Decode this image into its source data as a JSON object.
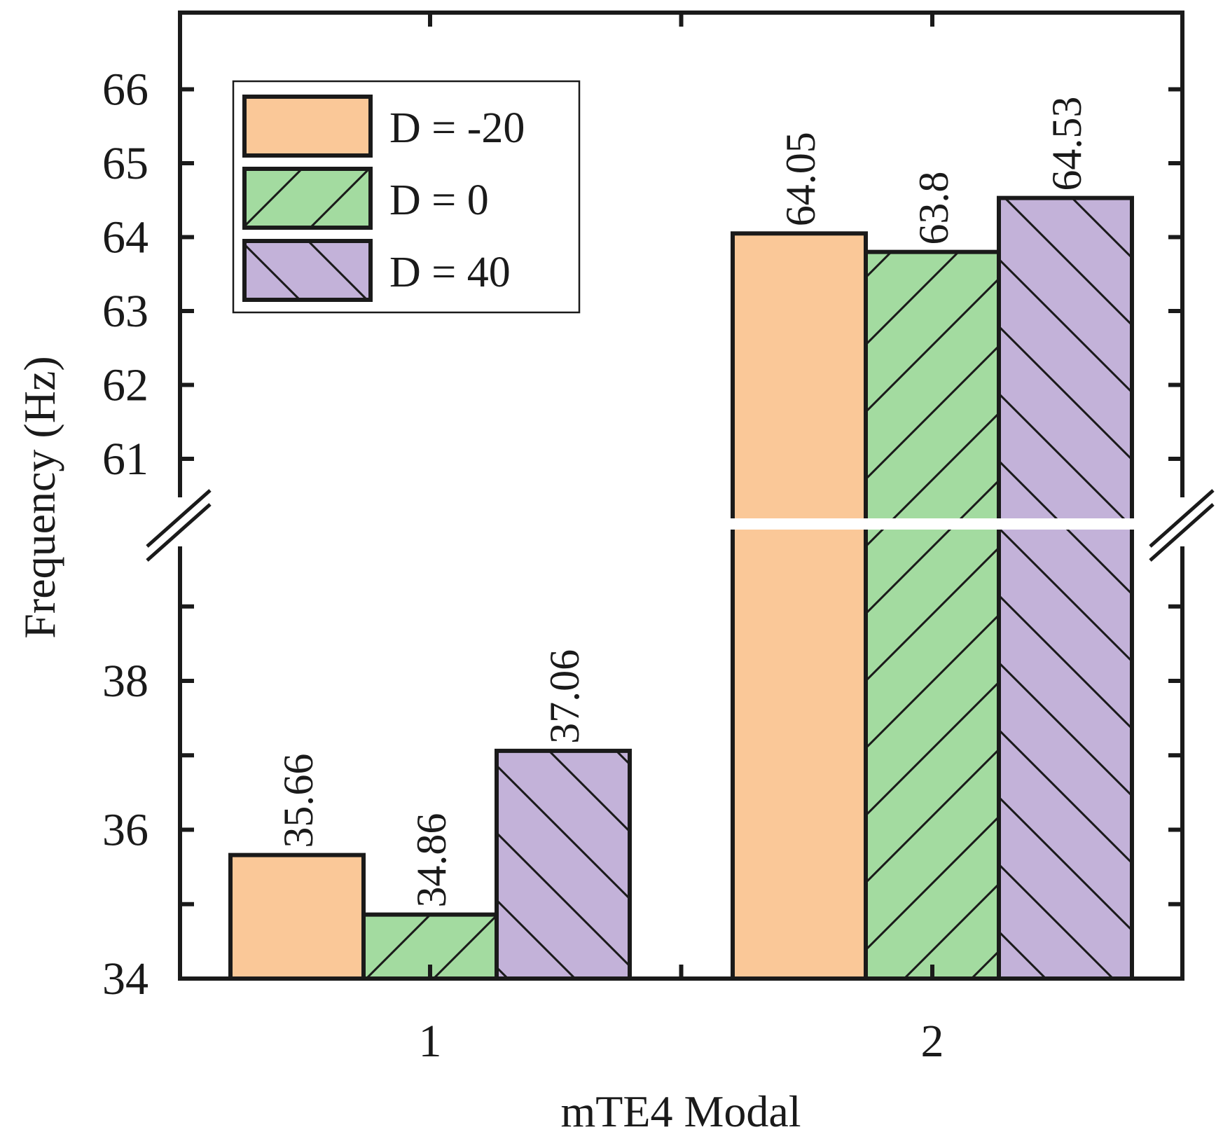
{
  "chart_data": {
    "type": "bar",
    "broken_axis": true,
    "title": "",
    "xlabel": "mTE4 Modal",
    "ylabel": "Frequency (Hz)",
    "categories": [
      "1",
      "2"
    ],
    "series": [
      {
        "name": "D = -20",
        "values": [
          35.66,
          64.05
        ],
        "value_labels": [
          "35.66",
          "64.05"
        ]
      },
      {
        "name": "D = 0",
        "values": [
          34.86,
          63.8
        ],
        "value_labels": [
          "34.86",
          "63.8"
        ]
      },
      {
        "name": "D = 40",
        "values": [
          37.06,
          64.53
        ],
        "value_labels": [
          "37.06",
          "64.53"
        ]
      }
    ],
    "y_segments": [
      {
        "range": [
          34,
          40
        ],
        "ticks": [
          "34",
          "36",
          "38"
        ]
      },
      {
        "range": [
          60,
          66.8
        ],
        "ticks": [
          "61",
          "62",
          "63",
          "64",
          "65",
          "66"
        ]
      }
    ],
    "legend_position": "top-left",
    "colors": {
      "series": [
        "#FAC898",
        "#A3DBA0",
        "#C3B2D9"
      ],
      "axis": "#1a1a1a"
    },
    "hatches": [
      "none",
      "forward-diagonal",
      "back-diagonal"
    ]
  }
}
